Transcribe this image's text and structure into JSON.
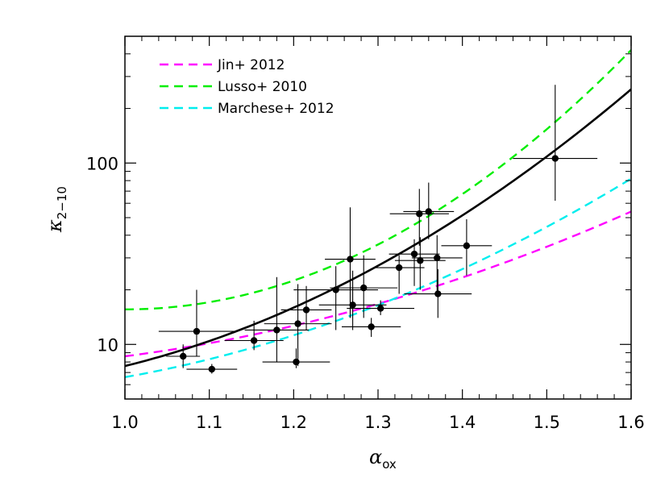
{
  "chart_data": {
    "type": "scatter",
    "xlabel": {
      "symbol": "α",
      "subscript": "ox"
    },
    "ylabel": {
      "symbol": "κ",
      "subscript": "2−10"
    },
    "xlim": [
      1.0,
      1.6
    ],
    "ylim": [
      5.0,
      500
    ],
    "y_scale": "log",
    "x_ticks": [
      "1.0",
      "1.1",
      "1.2",
      "1.3",
      "1.4",
      "1.5",
      "1.6"
    ],
    "x_tick_values": [
      1.0,
      1.1,
      1.2,
      1.3,
      1.4,
      1.5,
      1.6
    ],
    "y_ticks": [
      "10",
      "100"
    ],
    "y_tick_values": [
      10,
      100
    ],
    "grid": false,
    "legend_position": "top-left",
    "series": [
      {
        "name": "Jin+ 2012",
        "kind": "curve",
        "style": "dashed",
        "color": "#ff00ff",
        "x_range": [
          1.0,
          1.6
        ],
        "y_start": 8.6,
        "y_end": 54
      },
      {
        "name": "Lusso+ 2010",
        "kind": "curve",
        "style": "dashed",
        "color": "#00ee00",
        "x_range": [
          1.0,
          1.6
        ],
        "y_min": 15.6,
        "y_end": 420
      },
      {
        "name": "Marchese+ 2012",
        "kind": "curve",
        "style": "dashed",
        "color": "#00eeee",
        "x_range": [
          1.0,
          1.6
        ],
        "y_start": 6.6,
        "y_end": 82
      },
      {
        "kind": "fit",
        "style": "solid",
        "color": "#000000",
        "x_range": [
          1.0,
          1.6
        ],
        "y_start": 7.6,
        "y_end": 255
      },
      {
        "kind": "points",
        "color": "#000000",
        "points": [
          {
            "x": 1.069,
            "y": 8.6,
            "xerr": 0.02,
            "ylo": 7.4,
            "yhi": 10.0
          },
          {
            "x": 1.085,
            "y": 11.8,
            "xerr": 0.045,
            "ylo": 8.6,
            "yhi": 20.0
          },
          {
            "x": 1.103,
            "y": 7.3,
            "xerr": 0.03,
            "ylo": 6.9,
            "yhi": 7.8
          },
          {
            "x": 1.153,
            "y": 10.5,
            "xerr": 0.035,
            "ylo": 9.3,
            "yhi": 13.5
          },
          {
            "x": 1.18,
            "y": 12.0,
            "xerr": 0.038,
            "ylo": 8.0,
            "yhi": 23.5
          },
          {
            "x": 1.203,
            "y": 8.0,
            "xerr": 0.04,
            "ylo": 7.4,
            "yhi": 9.5
          },
          {
            "x": 1.205,
            "y": 13.0,
            "xerr": 0.04,
            "ylo": 7.6,
            "yhi": 21.5
          },
          {
            "x": 1.215,
            "y": 15.5,
            "xerr": 0.03,
            "ylo": 12.0,
            "yhi": 21.0
          },
          {
            "x": 1.25,
            "y": 20.0,
            "xerr": 0.05,
            "ylo": 12.0,
            "yhi": 27.0
          },
          {
            "x": 1.267,
            "y": 29.5,
            "xerr": 0.03,
            "ylo": 14.0,
            "yhi": 57.0
          },
          {
            "x": 1.27,
            "y": 16.5,
            "xerr": 0.04,
            "ylo": 12.0,
            "yhi": 25.5
          },
          {
            "x": 1.283,
            "y": 20.5,
            "xerr": 0.04,
            "ylo": 14.0,
            "yhi": 31.0
          },
          {
            "x": 1.292,
            "y": 12.5,
            "xerr": 0.035,
            "ylo": 11.0,
            "yhi": 14.0
          },
          {
            "x": 1.303,
            "y": 15.8,
            "xerr": 0.04,
            "ylo": 14.5,
            "yhi": 17.5
          },
          {
            "x": 1.325,
            "y": 26.5,
            "xerr": 0.03,
            "ylo": 19.0,
            "yhi": 31.0
          },
          {
            "x": 1.343,
            "y": 31.5,
            "xerr": 0.03,
            "ylo": 21.0,
            "yhi": 38.0
          },
          {
            "x": 1.349,
            "y": 52.5,
            "xerr": 0.035,
            "ylo": 35.0,
            "yhi": 72.0
          },
          {
            "x": 1.35,
            "y": 29.0,
            "xerr": 0.03,
            "ylo": 20.0,
            "yhi": 39.0
          },
          {
            "x": 1.36,
            "y": 54.0,
            "xerr": 0.03,
            "ylo": 38.0,
            "yhi": 78.0
          },
          {
            "x": 1.37,
            "y": 30.0,
            "xerr": 0.03,
            "ylo": 19.0,
            "yhi": 40.0
          },
          {
            "x": 1.371,
            "y": 19.0,
            "xerr": 0.04,
            "ylo": 14.0,
            "yhi": 26.0
          },
          {
            "x": 1.405,
            "y": 35.0,
            "xerr": 0.03,
            "ylo": 24.0,
            "yhi": 49.0
          },
          {
            "x": 1.51,
            "y": 106.0,
            "xerr": 0.05,
            "ylo": 62.0,
            "yhi": 270.0
          }
        ]
      }
    ]
  }
}
